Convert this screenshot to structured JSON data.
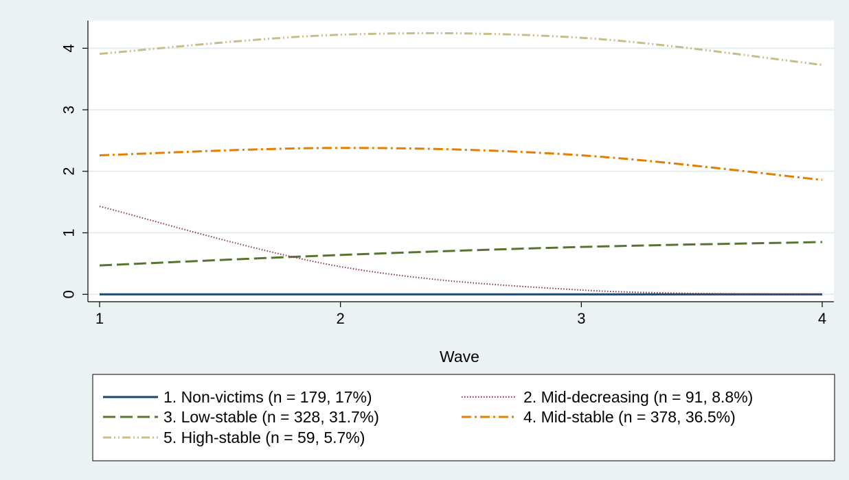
{
  "chart_data": {
    "type": "line",
    "title": "",
    "xlabel": "Wave",
    "ylabel": "",
    "x": [
      1,
      2,
      3,
      4
    ],
    "xlim": [
      1,
      4
    ],
    "ylim": [
      -0.12,
      4.45
    ],
    "xticks": [
      1,
      2,
      3,
      4
    ],
    "yticks": [
      0,
      1,
      2,
      3,
      4
    ],
    "grid": "horizontal",
    "legend_position": "bottom",
    "legend_columns": 2,
    "series": [
      {
        "name": "1. Non-victims (n = 179, 17%)",
        "values": [
          0.0,
          0.0,
          0.0,
          0.0
        ],
        "color": "#1a476f",
        "dash": "solid"
      },
      {
        "name": "2. Mid-decreasing (n = 91, 8.8%)",
        "values": [
          1.43,
          0.45,
          0.07,
          0.0
        ],
        "color": "#90353b",
        "dash": "dot"
      },
      {
        "name": "3. Low-stable (n = 328, 31.7%)",
        "values": [
          0.47,
          0.64,
          0.77,
          0.85
        ],
        "color": "#55752f",
        "dash": "longdash"
      },
      {
        "name": "4. Mid-stable (n = 378, 36.5%)",
        "values": [
          2.26,
          2.38,
          2.26,
          1.86
        ],
        "color": "#e37e00",
        "dash": "dashdot"
      },
      {
        "name": "5. High-stable (n = 59, 5.7%)",
        "values": [
          3.91,
          4.22,
          4.17,
          3.73
        ],
        "color": "#c7bd8a",
        "dash": "dashdotdot"
      }
    ]
  }
}
